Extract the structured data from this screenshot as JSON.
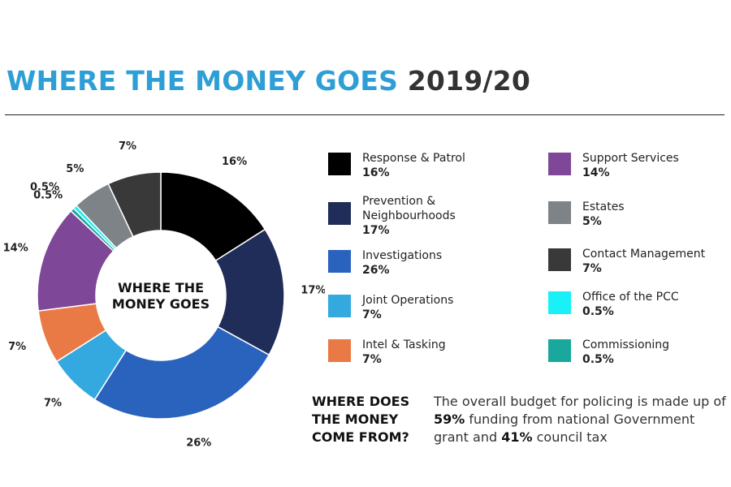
{
  "header": {
    "title_main": "WHERE THE MONEY GOES",
    "title_year": "2019/20"
  },
  "center_label": "WHERE THE MONEY GOES",
  "chart_data": {
    "type": "pie",
    "donut": true,
    "categories": [
      "Response & Patrol",
      "Prevention & Neighbourhoods",
      "Investigations",
      "Joint Operations",
      "Intel & Tasking",
      "Support Services",
      "Commissioning",
      "Office of the PCC",
      "Estates",
      "Contact Management"
    ],
    "values": [
      16,
      17,
      26,
      7,
      7,
      14,
      0.5,
      0.5,
      5,
      7
    ],
    "labels": [
      "16%",
      "17%",
      "26%",
      "7%",
      "7%",
      "14%",
      "0.5%",
      "0.5%",
      "5%",
      "7%"
    ],
    "colors": [
      "#000000",
      "#1f2d58",
      "#2a63bd",
      "#33a9e0",
      "#ea7a45",
      "#7f4797",
      "#1aa89d",
      "#19f0f7",
      "#7e8387",
      "#393939"
    ],
    "legend_position": "right"
  },
  "legend": [
    {
      "label": "Response & Patrol",
      "value": "16%",
      "color": "#000000"
    },
    {
      "label": "Prevention & Neighbourhoods",
      "value": "17%",
      "color": "#1f2d58"
    },
    {
      "label": "Investigations",
      "value": "26%",
      "color": "#2a63bd"
    },
    {
      "label": "Joint Operations",
      "value": "7%",
      "color": "#33a9e0"
    },
    {
      "label": "Intel & Tasking",
      "value": "7%",
      "color": "#ea7a45"
    },
    {
      "label": "Support Services",
      "value": "14%",
      "color": "#7f4797"
    },
    {
      "label": "Estates",
      "value": "5%",
      "color": "#7e8387"
    },
    {
      "label": "Contact Management",
      "value": "7%",
      "color": "#393939"
    },
    {
      "label": "Office of the PCC",
      "value": "0.5%",
      "color": "#19f0f7"
    },
    {
      "label": "Commissioning",
      "value": "0.5%",
      "color": "#1aa89d"
    }
  ],
  "funding_note": {
    "heading": "WHERE DOES THE MONEY COME FROM?",
    "text_before": "The overall budget for policing is made up of ",
    "national_pct": "59%",
    "text_middle": " funding from national Government grant and ",
    "council_pct": "41%",
    "text_after": " council tax"
  }
}
